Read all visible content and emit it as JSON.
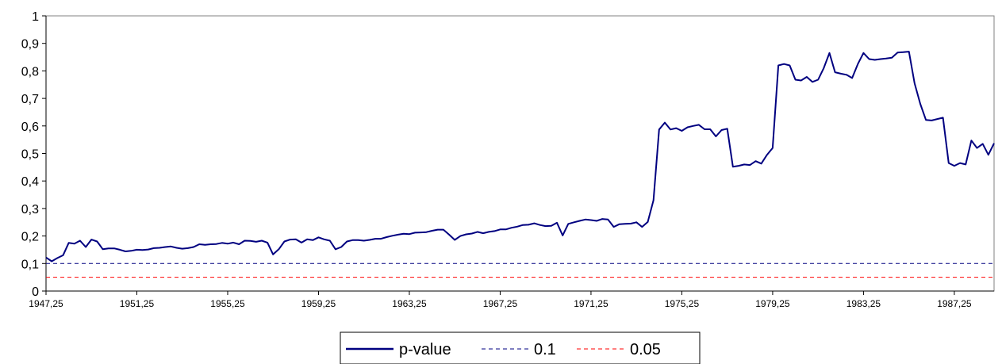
{
  "chart_data": {
    "type": "line",
    "title": "",
    "xlabel": "",
    "ylabel": "",
    "ylim": [
      0,
      1
    ],
    "y_ticks": [
      "0",
      "0,1",
      "0,2",
      "0,3",
      "0,4",
      "0,5",
      "0,6",
      "0,7",
      "0,8",
      "0,9",
      "1"
    ],
    "x_tick_labels": [
      "1947,25",
      "1951,25",
      "1955,25",
      "1959,25",
      "1963,25",
      "1967,25",
      "1971,25",
      "1975,25",
      "1979,25",
      "1983,25",
      "1987,25"
    ],
    "x_start": 1947.25,
    "x_step": 0.25,
    "grid": false,
    "legend_position": "bottom",
    "series": [
      {
        "name": "p-value",
        "color": "#000080",
        "style": "solid",
        "values": [
          0.122,
          0.108,
          0.12,
          0.13,
          0.175,
          0.172,
          0.183,
          0.16,
          0.187,
          0.18,
          0.152,
          0.155,
          0.155,
          0.15,
          0.144,
          0.146,
          0.15,
          0.149,
          0.151,
          0.156,
          0.157,
          0.16,
          0.162,
          0.157,
          0.154,
          0.156,
          0.16,
          0.17,
          0.168,
          0.17,
          0.171,
          0.175,
          0.172,
          0.176,
          0.17,
          0.183,
          0.182,
          0.179,
          0.183,
          0.176,
          0.133,
          0.152,
          0.18,
          0.187,
          0.188,
          0.176,
          0.188,
          0.185,
          0.195,
          0.188,
          0.183,
          0.152,
          0.16,
          0.18,
          0.185,
          0.185,
          0.183,
          0.186,
          0.19,
          0.19,
          0.196,
          0.201,
          0.205,
          0.208,
          0.207,
          0.212,
          0.213,
          0.214,
          0.219,
          0.223,
          0.223,
          0.205,
          0.186,
          0.2,
          0.206,
          0.209,
          0.215,
          0.21,
          0.215,
          0.218,
          0.224,
          0.224,
          0.23,
          0.234,
          0.24,
          0.241,
          0.246,
          0.24,
          0.236,
          0.237,
          0.248,
          0.202,
          0.244,
          0.25,
          0.255,
          0.26,
          0.258,
          0.255,
          0.262,
          0.26,
          0.233,
          0.243,
          0.244,
          0.245,
          0.25,
          0.233,
          0.251,
          0.33,
          0.587,
          0.612,
          0.587,
          0.592,
          0.582,
          0.595,
          0.6,
          0.604,
          0.588,
          0.588,
          0.562,
          0.585,
          0.59,
          0.452,
          0.455,
          0.46,
          0.458,
          0.472,
          0.463,
          0.495,
          0.52,
          0.82,
          0.825,
          0.82,
          0.768,
          0.765,
          0.778,
          0.76,
          0.768,
          0.81,
          0.865,
          0.795,
          0.79,
          0.786,
          0.774,
          0.825,
          0.865,
          0.843,
          0.84,
          0.843,
          0.845,
          0.848,
          0.867,
          0.868,
          0.87,
          0.755,
          0.68,
          0.622,
          0.62,
          0.625,
          0.63,
          0.465,
          0.455,
          0.465,
          0.46,
          0.547,
          0.52,
          0.535,
          0.495,
          0.537
        ]
      },
      {
        "name": "0.1",
        "color": "#000080",
        "style": "dashed",
        "constant": 0.1
      },
      {
        "name": "0.05",
        "color": "#ff0000",
        "style": "dashed",
        "constant": 0.05
      }
    ]
  }
}
